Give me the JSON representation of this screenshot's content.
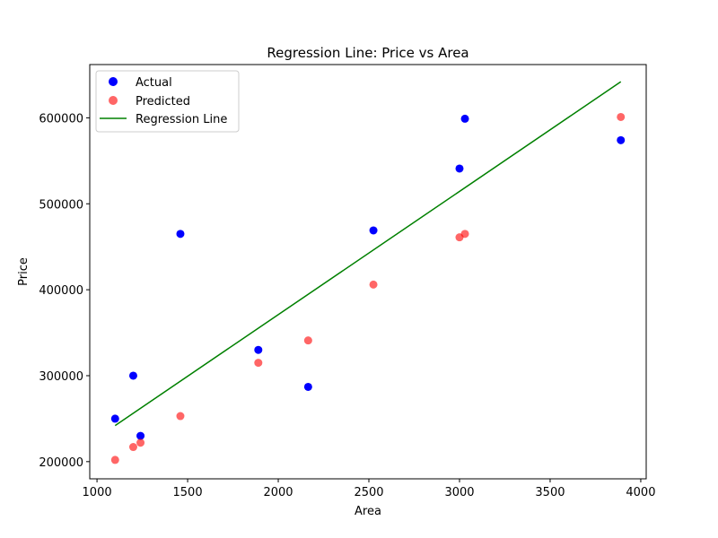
{
  "chart_data": {
    "type": "scatter",
    "title": "Regression Line: Price vs Area",
    "xlabel": "Area",
    "ylabel": "Price",
    "xlim": [
      960,
      4030
    ],
    "ylim": [
      180000,
      662000
    ],
    "xticks": [
      1000,
      1500,
      2000,
      2500,
      3000,
      3500,
      4000
    ],
    "yticks": [
      200000,
      300000,
      400000,
      500000,
      600000
    ],
    "grid": false,
    "legend_position": "top-left",
    "series": [
      {
        "name": "Actual",
        "kind": "scatter",
        "color": "#0000ff",
        "points": [
          {
            "x": 1100,
            "y": 250000
          },
          {
            "x": 1200,
            "y": 300000
          },
          {
            "x": 1240,
            "y": 230000
          },
          {
            "x": 1460,
            "y": 465000
          },
          {
            "x": 1890,
            "y": 330000
          },
          {
            "x": 2165,
            "y": 287000
          },
          {
            "x": 2525,
            "y": 469000
          },
          {
            "x": 3000,
            "y": 541000
          },
          {
            "x": 3030,
            "y": 599000
          },
          {
            "x": 3890,
            "y": 574000
          }
        ]
      },
      {
        "name": "Predicted",
        "kind": "scatter",
        "color": "#ff0000",
        "opacity": 0.6,
        "points": [
          {
            "x": 1100,
            "y": 202000
          },
          {
            "x": 1200,
            "y": 217000
          },
          {
            "x": 1240,
            "y": 222000
          },
          {
            "x": 1460,
            "y": 253000
          },
          {
            "x": 1890,
            "y": 315000
          },
          {
            "x": 2165,
            "y": 341000
          },
          {
            "x": 2525,
            "y": 406000
          },
          {
            "x": 3000,
            "y": 461000
          },
          {
            "x": 3030,
            "y": 465000
          },
          {
            "x": 3890,
            "y": 601000
          }
        ]
      },
      {
        "name": "Regression Line",
        "kind": "line",
        "color": "#008000",
        "points": [
          {
            "x": 1100,
            "y": 242000
          },
          {
            "x": 3890,
            "y": 642000
          }
        ]
      }
    ]
  }
}
